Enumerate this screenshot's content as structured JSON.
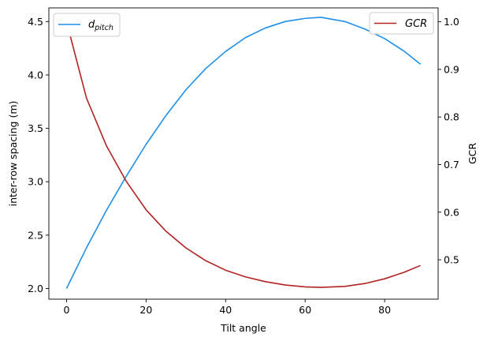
{
  "chart_data": {
    "type": "line",
    "xlabel": "Tilt angle",
    "ylabel_left": "inter-row spacing (m)",
    "ylabel_right": "GCR",
    "xlim": [
      -4.45,
      93.45
    ],
    "ylim_left": [
      1.9,
      4.628
    ],
    "ylim_right": [
      0.4172,
      1.0292
    ],
    "x_ticks": [
      0,
      20,
      40,
      60,
      80
    ],
    "y_ticks_left": [
      2.0,
      2.5,
      3.0,
      3.5,
      4.0,
      4.5
    ],
    "y_ticks_right": [
      0.5,
      0.6,
      0.7,
      0.8,
      0.9,
      1.0
    ],
    "grid": false,
    "series": [
      {
        "name_main": "d",
        "name_sub": "pitch",
        "axis": "left",
        "color": "#1f8fe8",
        "legend_position": "upper-left",
        "x": [
          0,
          5,
          10,
          15,
          20,
          25,
          30,
          35,
          40,
          45,
          50,
          55,
          60,
          64,
          70,
          75,
          80,
          85,
          89
        ],
        "y": [
          2.0,
          2.38,
          2.73,
          3.05,
          3.35,
          3.62,
          3.86,
          4.06,
          4.22,
          4.35,
          4.44,
          4.5,
          4.53,
          4.54,
          4.5,
          4.43,
          4.34,
          4.22,
          4.1
        ]
      },
      {
        "name_main": "GCR",
        "name_sub": "",
        "axis": "right",
        "color": "#b22222",
        "legend_position": "upper-right",
        "x": [
          0,
          5,
          10,
          15,
          20,
          25,
          30,
          35,
          40,
          45,
          50,
          55,
          60,
          64,
          70,
          75,
          80,
          85,
          89
        ],
        "y": [
          1.0,
          0.84,
          0.74,
          0.665,
          0.605,
          0.56,
          0.525,
          0.498,
          0.478,
          0.464,
          0.454,
          0.447,
          0.443,
          0.442,
          0.444,
          0.45,
          0.46,
          0.474,
          0.488
        ]
      }
    ]
  }
}
